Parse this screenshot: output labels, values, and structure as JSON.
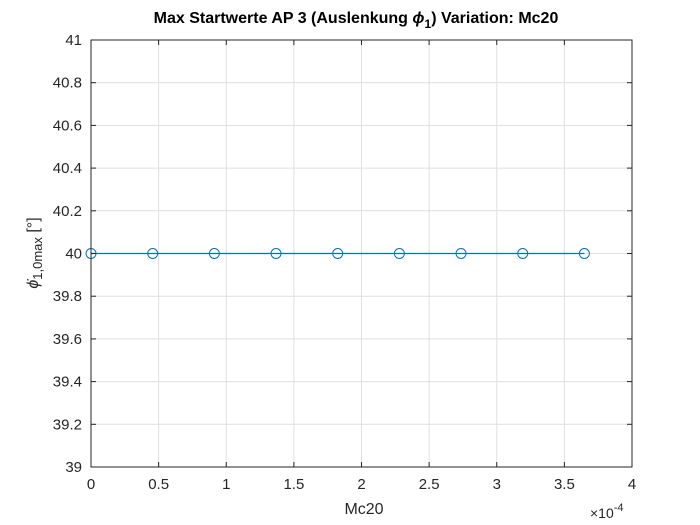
{
  "chart_data": {
    "type": "line",
    "title": {
      "prefix": "Max Startwerte AP 3 (Auslenkung ",
      "symbol": "ϕ",
      "subscript": "1",
      "suffix": ")  Variation: Mc20"
    },
    "xlabel": "Mc20",
    "ylabel": {
      "symbol": "ϕ̇",
      "subscript": "1,0max",
      "suffix": " [°]"
    },
    "x_scale_label": {
      "base": "×10",
      "exponent": "-4"
    },
    "xlim": [
      0,
      4
    ],
    "ylim": [
      39,
      41
    ],
    "x_ticks": [
      0,
      0.5,
      1,
      1.5,
      2,
      2.5,
      3,
      3.5,
      4
    ],
    "x_tick_labels": [
      "0",
      "0.5",
      "1",
      "1.5",
      "2",
      "2.5",
      "3",
      "3.5",
      "4"
    ],
    "y_ticks": [
      39,
      39.2,
      39.4,
      39.6,
      39.8,
      40,
      40.2,
      40.4,
      40.6,
      40.8,
      41
    ],
    "y_tick_labels": [
      "39",
      "39.2",
      "39.4",
      "39.6",
      "39.8",
      "40",
      "40.2",
      "40.4",
      "40.6",
      "40.8",
      "41"
    ],
    "grid": true,
    "marker": "circle",
    "series": [
      {
        "x": [
          0,
          0.456,
          0.912,
          1.368,
          1.824,
          2.28,
          2.736,
          3.192,
          3.648
        ],
        "y": [
          40,
          40,
          40,
          40,
          40,
          40,
          40,
          40,
          40
        ],
        "color": "#0072BD"
      }
    ]
  }
}
